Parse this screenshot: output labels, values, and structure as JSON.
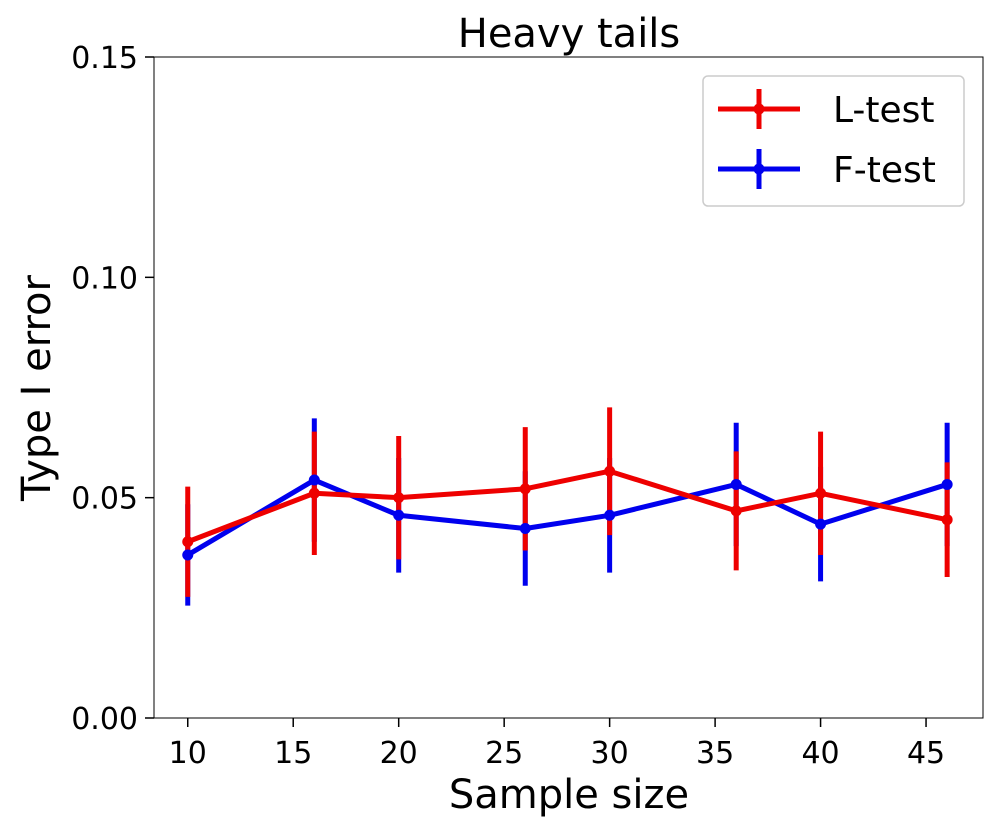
{
  "chart_data": {
    "type": "line",
    "title": "Heavy tails",
    "xlabel": "Sample size",
    "ylabel": "Type I error",
    "xlim": [
      8.4,
      47.7
    ],
    "ylim": [
      0.0,
      0.15
    ],
    "x_ticks": [
      10,
      15,
      20,
      25,
      30,
      35,
      40,
      45
    ],
    "y_ticks": [
      0.0,
      0.05,
      0.1,
      0.15
    ],
    "y_tick_labels": [
      "0.00",
      "0.05",
      "0.10",
      "0.15"
    ],
    "legend_position": "top-right",
    "grid": false,
    "error_bars": true,
    "series": [
      {
        "name": "L-test",
        "color": "#ee0000",
        "x": [
          10,
          16,
          20,
          26,
          30,
          36,
          40,
          46
        ],
        "y": [
          0.04,
          0.051,
          0.05,
          0.052,
          0.056,
          0.047,
          0.051,
          0.045
        ],
        "yerr": [
          0.0125,
          0.014,
          0.014,
          0.014,
          0.0145,
          0.0135,
          0.014,
          0.013
        ]
      },
      {
        "name": "F-test",
        "color": "#0000ee",
        "x": [
          10,
          16,
          20,
          26,
          30,
          36,
          40,
          46
        ],
        "y": [
          0.037,
          0.054,
          0.046,
          0.043,
          0.046,
          0.053,
          0.044,
          0.053
        ],
        "yerr": [
          0.0115,
          0.014,
          0.013,
          0.013,
          0.013,
          0.014,
          0.013,
          0.014
        ]
      }
    ]
  }
}
